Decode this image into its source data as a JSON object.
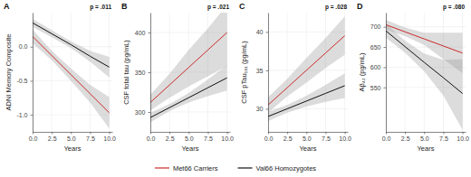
{
  "chart_data": [
    {
      "type": "line",
      "title": "A",
      "annotation": "p = .011",
      "x_label": "Years",
      "y_label": "ADNI Memory Composite",
      "x": [
        0,
        2.5,
        5,
        7.5,
        10
      ],
      "xlim": [
        0,
        10.4
      ],
      "xticks": [
        {
          "value": 0,
          "label": "0.0"
        },
        {
          "value": 2.5,
          "label": "2.5"
        },
        {
          "value": 5,
          "label": "5.0"
        },
        {
          "value": 7.5,
          "label": "7.5"
        },
        {
          "value": 10,
          "label": "10.0"
        }
      ],
      "ylim": [
        -1.25,
        0.5
      ],
      "yticks": [
        {
          "value": -1,
          "label": "-1.0"
        },
        {
          "value": -0.5,
          "label": "-0.5"
        },
        {
          "value": 0,
          "label": "0.0"
        }
      ],
      "grid": true,
      "legend": "bottom",
      "series": [
        {
          "name": "Met66 Carriers",
          "color": "#cc2a2a",
          "values": [
            0.15,
            -0.13,
            -0.41,
            -0.69,
            -0.97
          ],
          "lower": [
            0.05,
            -0.2,
            -0.5,
            -0.82,
            -1.2
          ],
          "upper": [
            0.25,
            -0.06,
            -0.32,
            -0.56,
            -0.74
          ]
        },
        {
          "name": "Val66 Homozygotes",
          "color": "#111111",
          "values": [
            0.35,
            0.19,
            0.03,
            -0.14,
            -0.3
          ],
          "lower": [
            0.29,
            0.14,
            -0.02,
            -0.22,
            -0.45
          ],
          "upper": [
            0.41,
            0.24,
            0.08,
            -0.06,
            -0.15
          ]
        }
      ]
    },
    {
      "type": "line",
      "title": "B",
      "annotation": "p = .021",
      "x_label": "Years",
      "y_label": "CSF total tau (pg/mL)",
      "x": [
        0,
        2.5,
        5,
        7.5,
        10
      ],
      "xlim": [
        0,
        10.4
      ],
      "xticks": [
        {
          "value": 0,
          "label": "0.0"
        },
        {
          "value": 2.5,
          "label": "2.5"
        },
        {
          "value": 5,
          "label": "5.0"
        },
        {
          "value": 7.5,
          "label": "7.5"
        },
        {
          "value": 10,
          "label": "10.0"
        }
      ],
      "ylim": [
        275,
        425
      ],
      "yticks": [
        300,
        350,
        400
      ],
      "grid": true,
      "series": [
        {
          "name": "Met66 Carriers",
          "color": "#cc2a2a",
          "values": [
            312,
            334,
            356,
            378,
            400
          ],
          "lower": [
            302,
            318,
            332,
            345,
            358
          ],
          "upper": [
            322,
            348,
            378,
            405,
            435
          ]
        },
        {
          "name": "Val66 Homozygotes",
          "color": "#111111",
          "values": [
            293,
            305.5,
            318,
            330.5,
            343
          ],
          "lower": [
            287,
            301,
            312,
            320,
            327
          ],
          "upper": [
            299,
            310,
            324,
            341,
            359
          ]
        }
      ]
    },
    {
      "type": "line",
      "title": "C",
      "annotation": "p = .028",
      "x_label": "Years",
      "y_label": "CSF pTau₁₈₁ (pg/mL)",
      "x": [
        0,
        2.5,
        5,
        7.5,
        10
      ],
      "xlim": [
        0,
        10.4
      ],
      "xticks": [
        {
          "value": 0,
          "label": "0.0"
        },
        {
          "value": 2.5,
          "label": "2.5"
        },
        {
          "value": 5,
          "label": "5.0"
        },
        {
          "value": 7.5,
          "label": "7.5"
        },
        {
          "value": 10,
          "label": "10.0"
        }
      ],
      "ylim": [
        27,
        42.5
      ],
      "yticks": [
        30,
        35,
        40
      ],
      "grid": true,
      "series": [
        {
          "name": "Met66 Carriers",
          "color": "#cc2a2a",
          "values": [
            30.5,
            32.75,
            35,
            37.25,
            39.5
          ],
          "lower": [
            29.5,
            31.6,
            33.4,
            35.3,
            37
          ],
          "upper": [
            31.5,
            33.9,
            36.6,
            39.2,
            42
          ]
        },
        {
          "name": "Val66 Homozygotes",
          "color": "#111111",
          "values": [
            29,
            30,
            31,
            32,
            33
          ],
          "lower": [
            28.4,
            29.5,
            30.3,
            30.9,
            31.4
          ],
          "upper": [
            29.6,
            30.5,
            31.7,
            33.1,
            34.6
          ]
        }
      ]
    },
    {
      "type": "line",
      "title": "D",
      "annotation": "p = .080",
      "x_label": "Years",
      "y_label": "Aβ₄₂ (pg/mL)",
      "x": [
        0,
        2.5,
        5,
        7.5,
        10
      ],
      "xlim": [
        0,
        10.4
      ],
      "xticks": [
        {
          "value": 0,
          "label": "0.0"
        },
        {
          "value": 2.5,
          "label": "2.5"
        },
        {
          "value": 5,
          "label": "5.0"
        },
        {
          "value": 7.5,
          "label": "7.5"
        },
        {
          "value": 10,
          "label": "10.0"
        }
      ],
      "ylim": [
        440,
        735
      ],
      "yticks": [
        550,
        600,
        650,
        700
      ],
      "grid": true,
      "series": [
        {
          "name": "Met66 Carriers",
          "color": "#cc2a2a",
          "values": [
            705,
            687.5,
            670,
            652.5,
            635
          ],
          "lower": [
            693,
            677,
            655,
            620,
            585
          ],
          "upper": [
            717,
            698,
            685,
            685,
            685
          ]
        },
        {
          "name": "Val66 Homozygotes",
          "color": "#111111",
          "values": [
            690,
            651,
            612,
            574,
            535
          ],
          "lower": [
            673,
            636,
            590,
            530,
            445
          ],
          "upper": [
            707,
            666,
            634,
            618,
            620
          ]
        }
      ]
    }
  ]
}
